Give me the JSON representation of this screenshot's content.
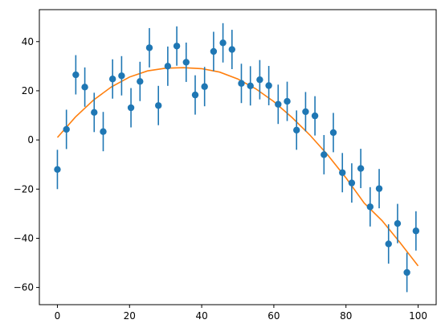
{
  "chart_data": {
    "type": "scatter",
    "title": "",
    "xlabel": "",
    "ylabel": "",
    "xlim": [
      -5,
      105
    ],
    "ylim": [
      -67,
      53
    ],
    "x_ticks": [
      0,
      20,
      40,
      60,
      80,
      100
    ],
    "y_ticks": [
      -60,
      -40,
      -20,
      0,
      20,
      40
    ],
    "grid": false,
    "legend": "none",
    "colors": {
      "points": "#1f77b4",
      "fit": "#ff7f0e",
      "axes": "#000000"
    },
    "series": [
      {
        "kind": "errorbar",
        "error": 8,
        "x": [
          0,
          2.5,
          5.1,
          7.6,
          10.2,
          12.7,
          15.3,
          17.8,
          20.4,
          22.9,
          25.5,
          28.0,
          30.6,
          33.1,
          35.7,
          38.2,
          40.8,
          43.3,
          45.9,
          48.4,
          51.0,
          53.5,
          56.1,
          58.6,
          61.2,
          63.7,
          66.3,
          68.8,
          71.4,
          73.9,
          76.5,
          79.0,
          81.6,
          84.1,
          86.7,
          89.2,
          91.8,
          94.3,
          96.9,
          99.4
        ],
        "y": [
          -12,
          4.3,
          26.5,
          21.5,
          11.2,
          3.4,
          24.8,
          26.1,
          13.1,
          23.8,
          37.5,
          14.0,
          30.0,
          38.2,
          31.6,
          18.3,
          21.7,
          36.0,
          39.5,
          36.8,
          23.0,
          22.0,
          24.5,
          22.1,
          14.5,
          15.7,
          4.0,
          11.5,
          9.8,
          -6.0,
          3.0,
          -13.3,
          -17.5,
          -11.6,
          -27.2,
          -19.8,
          -42.3,
          -34.0,
          -53.9,
          -37.0
        ]
      },
      {
        "kind": "line",
        "x": [
          0,
          5,
          10,
          15,
          20,
          25,
          30,
          35,
          40,
          45,
          50,
          55,
          60,
          65,
          70,
          75,
          80,
          85,
          90,
          95,
          100
        ],
        "y": [
          1.0,
          9.3,
          16.2,
          21.6,
          25.6,
          28.1,
          29.2,
          29.4,
          29.0,
          27.6,
          24.8,
          20.8,
          15.6,
          9.2,
          2.0,
          -6.2,
          -15.4,
          -25.6,
          -32.8,
          -41.8,
          -51.2
        ]
      }
    ]
  }
}
